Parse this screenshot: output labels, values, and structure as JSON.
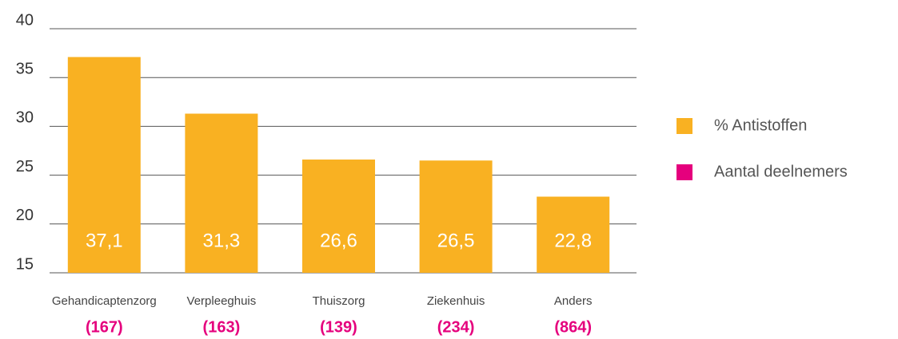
{
  "chart_data": {
    "type": "bar",
    "categories": [
      "Gehandicaptenzorg",
      "Verpleeghuis",
      "Thuiszorg",
      "Ziekenhuis",
      "Anders"
    ],
    "series": [
      {
        "name": "% Antistoffen",
        "color": "#f9b122",
        "values": [
          37.1,
          31.3,
          26.6,
          26.5,
          22.8
        ],
        "value_labels": [
          "37,1",
          "31,3",
          "26,6",
          "26,5",
          "22,8"
        ]
      },
      {
        "name": "Aantal deelnemers",
        "color": "#e5007d",
        "values": [
          167,
          163,
          139,
          234,
          864
        ],
        "value_labels": [
          "(167)",
          "(163)",
          "(139)",
          "(234)",
          "(864)"
        ]
      }
    ],
    "ylim": [
      15,
      40
    ],
    "yticks": [
      15,
      20,
      25,
      30,
      35,
      40
    ],
    "grid": true,
    "legend": "right"
  }
}
